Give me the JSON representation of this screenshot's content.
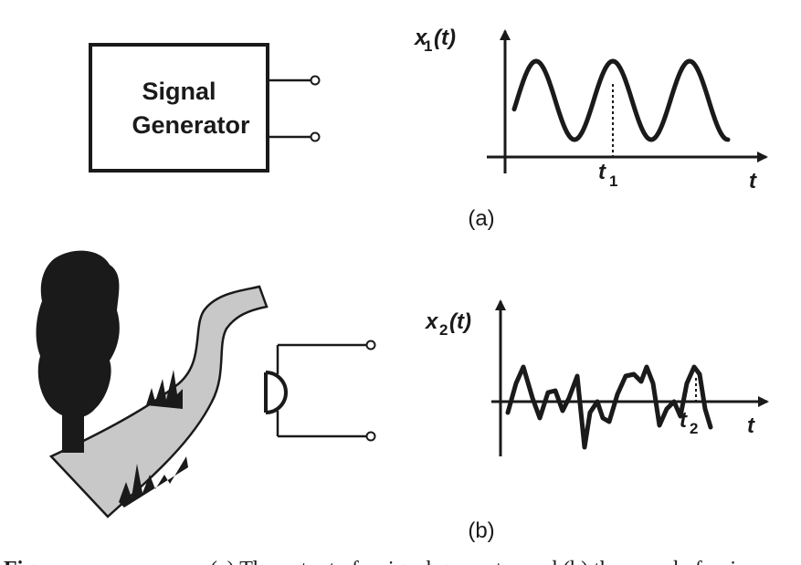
{
  "panel_a": {
    "box_line1": "Signal",
    "box_line2": "Generator",
    "y_label": "x",
    "y_label_sub": "1",
    "y_label_arg": "(t)",
    "x_label": "t",
    "marker_label": "t",
    "marker_sub": "1",
    "panel_label": "(a)"
  },
  "panel_b": {
    "y_label": "x",
    "y_label_sub": "2",
    "y_label_arg": "(t)",
    "x_label": "t",
    "marker_label": "t",
    "marker_sub": "2",
    "panel_label": "(b)",
    "scene_icons": [
      "tree-icon",
      "river-icon",
      "grass-icon",
      "microphone-icon"
    ]
  },
  "caption": {
    "prefix": "Figure",
    "number": "",
    "text": "(a) The output of a signal generator and (b) the sound of a river"
  },
  "colors": {
    "ink": "#1a1a1a",
    "river_fill": "#c8c8c8"
  }
}
